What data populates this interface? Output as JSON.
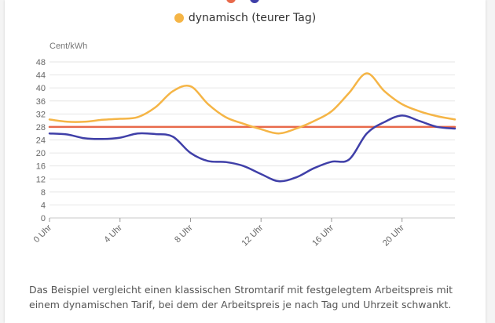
{
  "chart_data": {
    "type": "line",
    "ylabel": "Cent/kWh",
    "ylim": [
      0,
      48
    ],
    "yticks": [
      0,
      4,
      8,
      12,
      16,
      20,
      24,
      28,
      32,
      36,
      40,
      44,
      48
    ],
    "xlim": [
      0,
      23
    ],
    "xticks": [
      0,
      4,
      8,
      12,
      16,
      20
    ],
    "xtick_labels": [
      "0 Uhr",
      "4 Uhr",
      "8 Uhr",
      "12 Uhr",
      "16 Uhr",
      "20 Uhr"
    ],
    "grid": "horizontal",
    "series": [
      {
        "name": "",
        "color": "#e8694a",
        "x": [
          0,
          23
        ],
        "values": [
          28,
          28
        ]
      },
      {
        "name": "",
        "color": "#3f3fa8",
        "x": [
          0,
          1,
          2,
          3,
          4,
          5,
          6,
          7,
          8,
          9,
          10,
          11,
          12,
          13,
          14,
          15,
          16,
          17,
          18,
          19,
          20,
          21,
          22,
          23
        ],
        "values": [
          26,
          25.7,
          24.5,
          24.3,
          24.7,
          26,
          25.8,
          25,
          20,
          17.5,
          17.2,
          16,
          13.5,
          11.3,
          12.5,
          15.3,
          17.3,
          18,
          26,
          29.5,
          31.5,
          29.8,
          28,
          27.5
        ]
      },
      {
        "name": "dynamisch (teurer Tag)",
        "color": "#f5b546",
        "x": [
          0,
          1,
          2,
          3,
          4,
          5,
          6,
          7,
          8,
          9,
          10,
          11,
          12,
          13,
          14,
          15,
          16,
          17,
          18,
          19,
          20,
          21,
          22,
          23
        ],
        "values": [
          30.3,
          29.6,
          29.6,
          30.2,
          30.5,
          31,
          34,
          39,
          40.5,
          35,
          31,
          29,
          27.3,
          26,
          27.5,
          29.8,
          32.8,
          38.5,
          44.5,
          39,
          35,
          32.8,
          31.3,
          30.3
        ]
      }
    ]
  },
  "legend": {
    "top_row": [
      {
        "label": "",
        "color": "#e8694a"
      },
      {
        "label": "",
        "color": "#3f3fa8"
      }
    ],
    "second_row": {
      "label": "dynamisch (teurer Tag)",
      "color": "#f5b546"
    }
  },
  "caption": "Das Beispiel vergleicht einen klassischen Stromtarif mit festgelegtem Arbeitspreis mit einem dynamischen Tarif, bei dem der Arbeitspreis je nach Tag und Uhrzeit schwankt."
}
